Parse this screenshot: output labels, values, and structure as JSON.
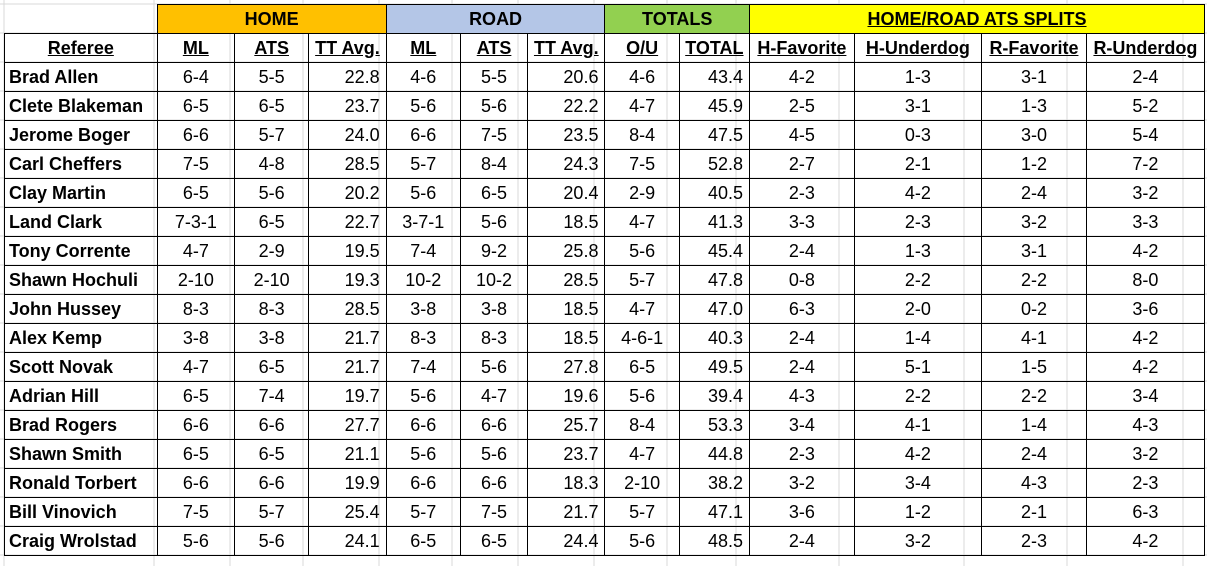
{
  "colors": {
    "home": "#FFC000",
    "road": "#B4C6E7",
    "totals": "#92D050",
    "splits": "#FFFF00",
    "gridline": "#D9D9D9"
  },
  "groups": [
    {
      "key": "home",
      "label": "HOME",
      "span": 3
    },
    {
      "key": "road",
      "label": "ROAD",
      "span": 3
    },
    {
      "key": "totals",
      "label": "TOTALS",
      "span": 2
    },
    {
      "key": "splits",
      "label": "HOME/ROAD ATS SPLITS",
      "span": 4
    }
  ],
  "columns": [
    "Referee",
    "ML",
    "ATS",
    "TT Avg.",
    "ML",
    "ATS",
    "TT Avg.",
    "O/U",
    "TOTAL",
    "H-Favorite",
    "H-Underdog",
    "R-Favorite",
    "R-Underdog"
  ],
  "rows": [
    [
      "Brad Allen",
      "6-4",
      "5-5",
      "22.8",
      "4-6",
      "5-5",
      "20.6",
      "4-6",
      "43.4",
      "4-2",
      "1-3",
      "3-1",
      "2-4"
    ],
    [
      "Clete Blakeman",
      "6-5",
      "6-5",
      "23.7",
      "5-6",
      "5-6",
      "22.2",
      "4-7",
      "45.9",
      "2-5",
      "3-1",
      "1-3",
      "5-2"
    ],
    [
      "Jerome Boger",
      "6-6",
      "5-7",
      "24.0",
      "6-6",
      "7-5",
      "23.5",
      "8-4",
      "47.5",
      "4-5",
      "0-3",
      "3-0",
      "5-4"
    ],
    [
      "Carl Cheffers",
      "7-5",
      "4-8",
      "28.5",
      "5-7",
      "8-4",
      "24.3",
      "7-5",
      "52.8",
      "2-7",
      "2-1",
      "1-2",
      "7-2"
    ],
    [
      "Clay Martin",
      "6-5",
      "5-6",
      "20.2",
      "5-6",
      "6-5",
      "20.4",
      "2-9",
      "40.5",
      "2-3",
      "4-2",
      "2-4",
      "3-2"
    ],
    [
      "Land Clark",
      "7-3-1",
      "6-5",
      "22.7",
      "3-7-1",
      "5-6",
      "18.5",
      "4-7",
      "41.3",
      "3-3",
      "2-3",
      "3-2",
      "3-3"
    ],
    [
      "Tony Corrente",
      "4-7",
      "2-9",
      "19.5",
      "7-4",
      "9-2",
      "25.8",
      "5-6",
      "45.4",
      "2-4",
      "1-3",
      "3-1",
      "4-2"
    ],
    [
      "Shawn Hochuli",
      "2-10",
      "2-10",
      "19.3",
      "10-2",
      "10-2",
      "28.5",
      "5-7",
      "47.8",
      "0-8",
      "2-2",
      "2-2",
      "8-0"
    ],
    [
      "John Hussey",
      "8-3",
      "8-3",
      "28.5",
      "3-8",
      "3-8",
      "18.5",
      "4-7",
      "47.0",
      "6-3",
      "2-0",
      "0-2",
      "3-6"
    ],
    [
      "Alex Kemp",
      "3-8",
      "3-8",
      "21.7",
      "8-3",
      "8-3",
      "18.5",
      "4-6-1",
      "40.3",
      "2-4",
      "1-4",
      "4-1",
      "4-2"
    ],
    [
      "Scott Novak",
      "4-7",
      "6-5",
      "21.7",
      "7-4",
      "5-6",
      "27.8",
      "6-5",
      "49.5",
      "2-4",
      "5-1",
      "1-5",
      "4-2"
    ],
    [
      "Adrian Hill",
      "6-5",
      "7-4",
      "19.7",
      "5-6",
      "4-7",
      "19.6",
      "5-6",
      "39.4",
      "4-3",
      "2-2",
      "2-2",
      "3-4"
    ],
    [
      "Brad Rogers",
      "6-6",
      "6-6",
      "27.7",
      "6-6",
      "6-6",
      "25.7",
      "8-4",
      "53.3",
      "3-4",
      "4-1",
      "1-4",
      "4-3"
    ],
    [
      "Shawn Smith",
      "6-5",
      "6-5",
      "21.1",
      "5-6",
      "5-6",
      "23.7",
      "4-7",
      "44.8",
      "2-3",
      "4-2",
      "2-4",
      "3-2"
    ],
    [
      "Ronald Torbert",
      "6-6",
      "6-6",
      "19.9",
      "6-6",
      "6-6",
      "18.3",
      "2-10",
      "38.2",
      "3-2",
      "3-4",
      "4-3",
      "2-3"
    ],
    [
      "Bill Vinovich",
      "7-5",
      "5-7",
      "25.4",
      "5-7",
      "7-5",
      "21.7",
      "5-7",
      "47.1",
      "3-6",
      "1-2",
      "2-1",
      "6-3"
    ],
    [
      "Craig Wrolstad",
      "5-6",
      "5-6",
      "24.1",
      "6-5",
      "6-5",
      "24.4",
      "5-6",
      "48.5",
      "2-4",
      "3-2",
      "2-3",
      "4-2"
    ]
  ]
}
